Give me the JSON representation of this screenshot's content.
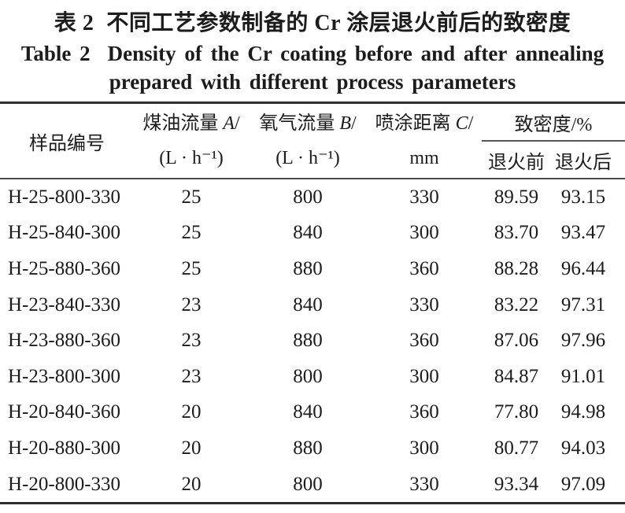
{
  "title": {
    "zh_label": "表 2",
    "zh_text": "不同工艺参数制备的 Cr 涂层退火前后的致密度",
    "en_label": "Table 2",
    "en_text_line1": "Density of the Cr coating before and after annealing",
    "en_text_line2": "prepared with different process parameters"
  },
  "table": {
    "header": {
      "sample": "样品编号",
      "kerosene": {
        "name": "煤油流量 ",
        "symbol": "A",
        "slash": "/",
        "unit": "(L · h⁻¹)"
      },
      "oxygen": {
        "name": "氧气流量 ",
        "symbol": "B",
        "slash": "/",
        "unit": "(L · h⁻¹)"
      },
      "distance": {
        "name": "喷涂距离 ",
        "symbol": "C",
        "slash": "/",
        "unit": "mm"
      },
      "density_group": "致密度/%",
      "density_before": "退火前",
      "density_after": "退火后"
    },
    "rows": [
      {
        "id": "H-25-800-330",
        "kerosene": "25",
        "oxygen": "800",
        "distance": "330",
        "before": "89.59",
        "after": "93.15"
      },
      {
        "id": "H-25-840-300",
        "kerosene": "25",
        "oxygen": "840",
        "distance": "300",
        "before": "83.70",
        "after": "93.47"
      },
      {
        "id": "H-25-880-360",
        "kerosene": "25",
        "oxygen": "880",
        "distance": "360",
        "before": "88.28",
        "after": "96.44"
      },
      {
        "id": "H-23-840-330",
        "kerosene": "23",
        "oxygen": "840",
        "distance": "330",
        "before": "83.22",
        "after": "97.31"
      },
      {
        "id": "H-23-880-360",
        "kerosene": "23",
        "oxygen": "880",
        "distance": "360",
        "before": "87.06",
        "after": "97.96"
      },
      {
        "id": "H-23-800-300",
        "kerosene": "23",
        "oxygen": "800",
        "distance": "300",
        "before": "84.87",
        "after": "91.01"
      },
      {
        "id": "H-20-840-360",
        "kerosene": "20",
        "oxygen": "840",
        "distance": "360",
        "before": "77.80",
        "after": "94.98"
      },
      {
        "id": "H-20-880-300",
        "kerosene": "20",
        "oxygen": "880",
        "distance": "300",
        "before": "80.77",
        "after": "94.03"
      },
      {
        "id": "H-20-800-330",
        "kerosene": "20",
        "oxygen": "800",
        "distance": "330",
        "before": "93.34",
        "after": "97.09"
      }
    ]
  },
  "colors": {
    "background": "#ffffff",
    "text": "#1c1c1c",
    "rule_heavy": "#2e2e2e",
    "rule_light": "#4a4a4a"
  }
}
